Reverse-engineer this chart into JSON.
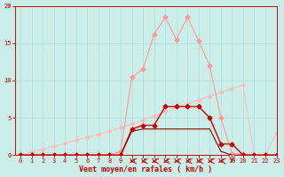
{
  "xlabel": "Vent moyen/en rafales ( km/h )",
  "background_color": "#cceee8",
  "grid_color": "#aadddd",
  "xlim": [
    -0.5,
    23
  ],
  "ylim": [
    0,
    20
  ],
  "yticks": [
    0,
    5,
    10,
    15,
    20
  ],
  "xticks": [
    0,
    1,
    2,
    3,
    4,
    5,
    6,
    7,
    8,
    9,
    10,
    11,
    12,
    13,
    14,
    15,
    16,
    17,
    18,
    19,
    20,
    21,
    22,
    23
  ],
  "line_pink_big": {
    "x": [
      0,
      1,
      2,
      3,
      4,
      5,
      6,
      7,
      8,
      9,
      10,
      11,
      12,
      13,
      14,
      15,
      16,
      17,
      18,
      19,
      20,
      21,
      22,
      23
    ],
    "y": [
      0,
      0.4,
      0.8,
      1.2,
      1.6,
      2.0,
      2.4,
      2.8,
      3.2,
      3.7,
      4.2,
      4.7,
      5.3,
      5.8,
      6.4,
      6.9,
      7.4,
      7.9,
      8.4,
      8.9,
      9.4,
      0,
      0,
      3.0
    ],
    "color": "#ffbbbb",
    "markersize": 2,
    "linewidth": 0.7
  },
  "line_light_peak": {
    "x": [
      0,
      1,
      2,
      3,
      4,
      5,
      6,
      7,
      8,
      9,
      10,
      11,
      12,
      13,
      14,
      15,
      16,
      17,
      18,
      19,
      20,
      21,
      22,
      23
    ],
    "y": [
      0,
      0,
      0,
      0,
      0,
      0,
      0,
      0,
      0,
      0.5,
      10.5,
      11.5,
      16.2,
      18.5,
      15.5,
      18.5,
      15.3,
      12.0,
      5.0,
      0.2,
      0.1,
      0,
      0,
      0
    ],
    "color": "#ff9999",
    "markersize": 2.5,
    "linewidth": 0.8
  },
  "line_medium": {
    "x": [
      0,
      1,
      2,
      3,
      4,
      5,
      6,
      7,
      8,
      9,
      10,
      11,
      12,
      13,
      14,
      15,
      16,
      17,
      18,
      19,
      20,
      21,
      22,
      23
    ],
    "y": [
      0,
      0,
      0,
      0,
      0,
      0,
      0,
      0,
      0,
      0,
      3.5,
      4.0,
      4.0,
      6.5,
      6.5,
      6.5,
      6.5,
      5.0,
      1.5,
      1.5,
      0,
      0,
      0,
      0
    ],
    "color": "#cc0000",
    "markersize": 2.5,
    "linewidth": 1.0
  },
  "line_dark": {
    "x": [
      0,
      1,
      2,
      3,
      4,
      5,
      6,
      7,
      8,
      9,
      10,
      11,
      12,
      13,
      14,
      15,
      16,
      17,
      18,
      19,
      20,
      21,
      22,
      23
    ],
    "y": [
      0,
      0,
      0,
      0,
      0,
      0,
      0,
      0,
      0,
      0,
      3.2,
      3.5,
      3.5,
      3.5,
      3.5,
      3.5,
      3.5,
      3.5,
      0.5,
      0,
      0,
      0,
      0,
      0
    ],
    "color": "#880000",
    "markersize": 0,
    "linewidth": 0.8
  },
  "arrows": {
    "x": [
      10,
      11,
      12,
      13,
      14,
      15,
      16,
      17,
      18
    ],
    "down_x": 19,
    "y": -0.8,
    "color": "#cc0000"
  }
}
